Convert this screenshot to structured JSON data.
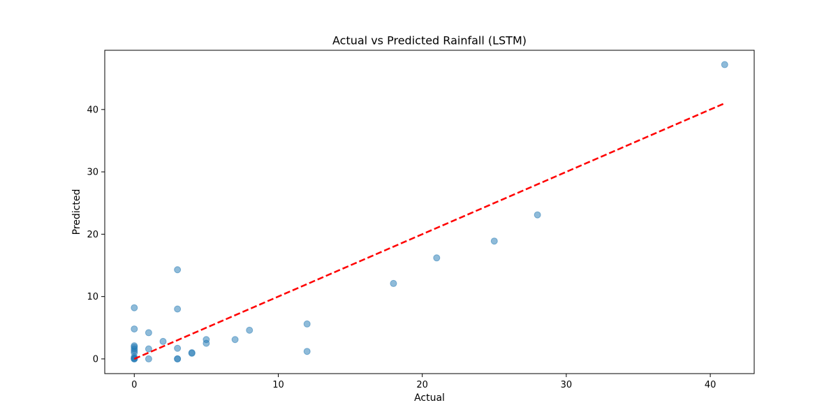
{
  "chart_data": {
    "type": "scatter",
    "title": "Actual vs Predicted Rainfall (LSTM)",
    "xlabel": "Actual",
    "ylabel": "Predicted",
    "xlim": [
      -2.05,
      43.05
    ],
    "ylim": [
      -2.36,
      49.5
    ],
    "xticks": [
      0,
      10,
      20,
      30,
      40
    ],
    "yticks": [
      0,
      10,
      20,
      30,
      40
    ],
    "grid": false,
    "point_color": "#1f77b4",
    "point_opacity": 0.5,
    "reference_line": {
      "style": "dashed",
      "color": "#ff0000",
      "x": [
        0,
        41
      ],
      "y": [
        0,
        41
      ]
    },
    "points": [
      {
        "x": 0,
        "y": 8.2
      },
      {
        "x": 0,
        "y": 4.8
      },
      {
        "x": 0,
        "y": 2.1
      },
      {
        "x": 0,
        "y": 1.9
      },
      {
        "x": 0,
        "y": 1.6
      },
      {
        "x": 0,
        "y": 1.3
      },
      {
        "x": 0,
        "y": 1.0
      },
      {
        "x": 0,
        "y": 0.3
      },
      {
        "x": 0,
        "y": 0.1
      },
      {
        "x": 0,
        "y": 0
      },
      {
        "x": 0,
        "y": 0
      },
      {
        "x": 1,
        "y": 4.2
      },
      {
        "x": 1,
        "y": 1.6
      },
      {
        "x": 1,
        "y": 0
      },
      {
        "x": 2,
        "y": 2.8
      },
      {
        "x": 3,
        "y": 14.3
      },
      {
        "x": 3,
        "y": 8.0
      },
      {
        "x": 3,
        "y": 1.7
      },
      {
        "x": 3,
        "y": 0
      },
      {
        "x": 3,
        "y": 0
      },
      {
        "x": 4,
        "y": 1.0
      },
      {
        "x": 4,
        "y": 0.9
      },
      {
        "x": 5,
        "y": 3.1
      },
      {
        "x": 5,
        "y": 2.5
      },
      {
        "x": 7,
        "y": 3.1
      },
      {
        "x": 8,
        "y": 4.6
      },
      {
        "x": 12,
        "y": 5.6
      },
      {
        "x": 12,
        "y": 1.2
      },
      {
        "x": 18,
        "y": 12.1
      },
      {
        "x": 21,
        "y": 16.2
      },
      {
        "x": 25,
        "y": 18.9
      },
      {
        "x": 28,
        "y": 23.1
      },
      {
        "x": 41,
        "y": 47.2
      }
    ]
  }
}
